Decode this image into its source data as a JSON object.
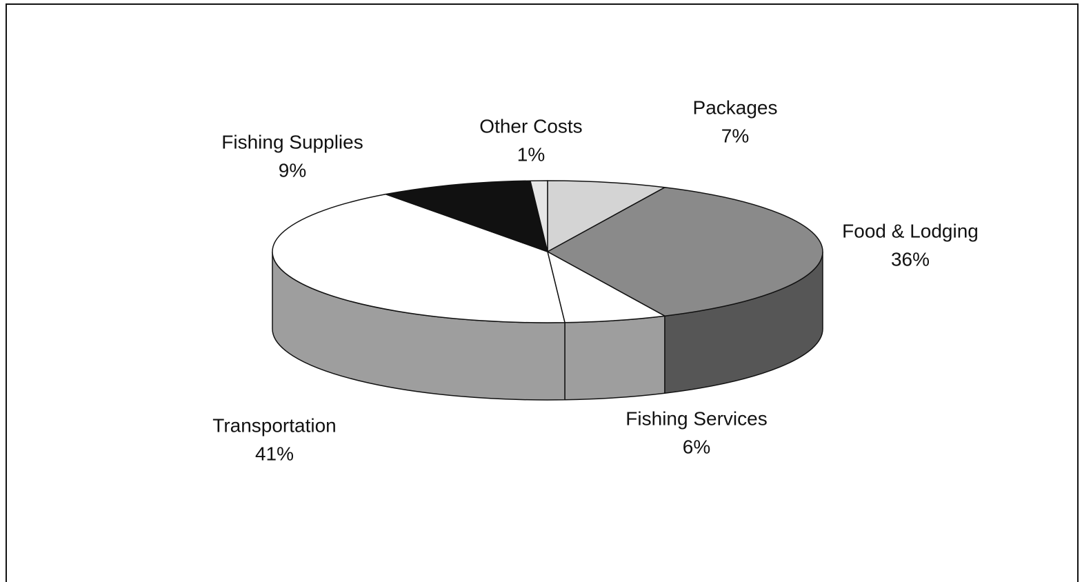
{
  "chart_data": {
    "type": "pie",
    "three_d": true,
    "categories": [
      "Packages",
      "Food & Lodging",
      "Fishing Services",
      "Transportation",
      "Fishing Supplies",
      "Other Costs"
    ],
    "values": [
      7,
      36,
      6,
      41,
      9,
      1
    ],
    "value_labels": [
      "7%",
      "36%",
      "6%",
      "41%",
      "9%",
      "1%"
    ],
    "colors": [
      "#d4d4d4",
      "#8a8a8a",
      "#ffffff",
      "#ffffff",
      "#111111",
      "#e6e6e6"
    ]
  }
}
